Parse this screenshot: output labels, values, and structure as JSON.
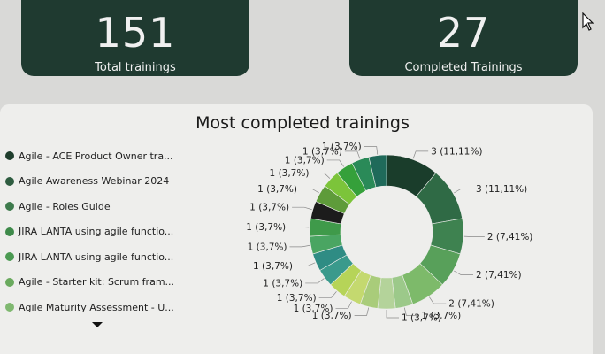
{
  "kpis": [
    {
      "value": "151",
      "label": "Total trainings"
    },
    {
      "value": "27",
      "label": "Completed Trainings"
    }
  ],
  "panel": {
    "title": "Most completed trainings"
  },
  "legend": [
    {
      "label": "Agile - ACE Product Owner tra...",
      "color": "#1e3d2c"
    },
    {
      "label": "Agile Awareness Webinar 2024",
      "color": "#2e5c40"
    },
    {
      "label": "Agile - Roles Guide",
      "color": "#3d7a4c"
    },
    {
      "label": "JIRA LANTA using agile functio...",
      "color": "#3e8a4a"
    },
    {
      "label": "JIRA LANTA using agile functio...",
      "color": "#4b9a52"
    },
    {
      "label": "Agile - Starter kit: Scrum fram...",
      "color": "#6aaa5e"
    },
    {
      "label": "Agile Maturity Assessment - U...",
      "color": "#7fb870"
    }
  ],
  "chart_data": {
    "type": "pie",
    "title": "Most completed trainings",
    "slices": [
      {
        "value": 3,
        "label": "3 (11,11%)",
        "color": "#1a3d2b"
      },
      {
        "value": 3,
        "label": "3 (11,11%)",
        "color": "#2f6a45"
      },
      {
        "value": 2,
        "label": "2 (7,41%)",
        "color": "#3e8250"
      },
      {
        "value": 2,
        "label": "2 (7,41%)",
        "color": "#58a05a"
      },
      {
        "value": 2,
        "label": "2 (7,41%)",
        "color": "#7dba6a"
      },
      {
        "value": 1,
        "label": "1 (3,7%)",
        "color": "#9cc98a"
      },
      {
        "value": 1,
        "label": "1 (3,7%)",
        "color": "#b4d39a"
      },
      {
        "value": 1,
        "label": "1 (3,7%)",
        "color": "#a9cc7a"
      },
      {
        "value": 1,
        "label": "1 (3,7%)",
        "color": "#c4d96f"
      },
      {
        "value": 1,
        "label": "1 (3,7%)",
        "color": "#b6d458"
      },
      {
        "value": 1,
        "label": "1 (3,7%)",
        "color": "#3a9a8c"
      },
      {
        "value": 1,
        "label": "1 (3,7%)",
        "color": "#2f8c84"
      },
      {
        "value": 1,
        "label": "1 (3,7%)",
        "color": "#4aa562"
      },
      {
        "value": 1,
        "label": "1 (3,7%)",
        "color": "#3f9a4a"
      },
      {
        "value": 1,
        "label": "1 (3,7%)",
        "color": "#1c1c1c"
      },
      {
        "value": 1,
        "label": "1 (3,7%)",
        "color": "#5e9b3a"
      },
      {
        "value": 1,
        "label": "1 (3,7%)",
        "color": "#7cc43a"
      },
      {
        "value": 1,
        "label": "1 (3,7%)",
        "color": "#35a03a"
      },
      {
        "value": 1,
        "label": "1 (3,7%)",
        "color": "#2a8a58"
      },
      {
        "value": 1,
        "label": "1 (3,7%)",
        "color": "#1f6a5a"
      }
    ]
  }
}
